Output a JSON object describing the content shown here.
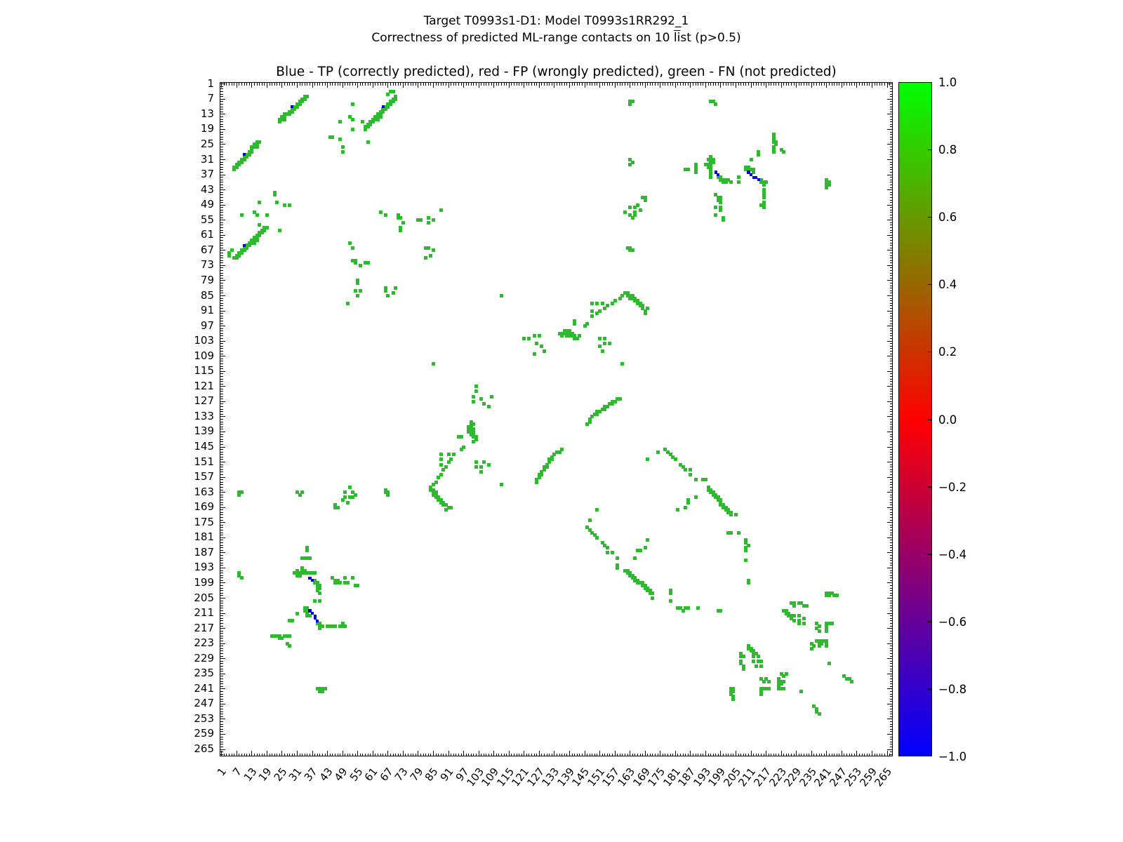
{
  "figure": {
    "title_line1": "Target T0993s1-D1: Model T0993s1RR292_1",
    "title_line2_prefix": "Correctness of predicted ML-range contacts on 10 ",
    "title_line2_overlined": "li",
    "title_line2_suffix": "st (p>0.5)",
    "axes_title": "Blue - TP (correctly predicted), red - FP (wrongly predicted), green - FN (not predicted)"
  },
  "axis": {
    "tick_labels": [
      "1",
      "7",
      "13",
      "19",
      "25",
      "31",
      "37",
      "43",
      "49",
      "55",
      "61",
      "67",
      "73",
      "79",
      "85",
      "91",
      "97",
      "103",
      "109",
      "115",
      "121",
      "127",
      "133",
      "139",
      "145",
      "151",
      "157",
      "163",
      "169",
      "175",
      "181",
      "187",
      "193",
      "199",
      "205",
      "211",
      "217",
      "223",
      "229",
      "235",
      "241",
      "247",
      "253",
      "259",
      "265"
    ],
    "min_cell": 1,
    "max_cell": 267
  },
  "colorbar": {
    "tick_labels": [
      "1.0",
      "0.8",
      "0.6",
      "0.4",
      "0.2",
      "0.0",
      "−0.2",
      "−0.4",
      "−0.6",
      "−0.8",
      "−1.0"
    ],
    "top_color": "#00ff00",
    "mid_color": "#ff0000",
    "bottom_color": "#0000ff"
  },
  "colors": {
    "fn_green": "#2eba2e",
    "tp_blue": "#0000dd",
    "fp_red": "#ff0000"
  },
  "chart_data": {
    "type": "heatmap",
    "symmetric": true,
    "n_cells": 267,
    "value_range": [
      -1,
      1
    ],
    "legend": {
      "TP": "blue",
      "FP": "red",
      "FN": "green"
    },
    "fp_red_points": [],
    "tp_blue_points": [
      [
        29,
        10
      ],
      [
        65,
        10
      ],
      [
        197,
        36
      ],
      [
        198,
        37
      ],
      [
        210,
        36
      ],
      [
        211,
        37
      ],
      [
        212,
        38
      ],
      [
        213,
        38
      ],
      [
        214,
        39
      ]
    ],
    "fn_green_points": [
      [
        24,
        15
      ],
      [
        24,
        16
      ],
      [
        25,
        14
      ],
      [
        25,
        15
      ],
      [
        26,
        13
      ],
      [
        26,
        14
      ],
      [
        26,
        15
      ],
      [
        27,
        13
      ],
      [
        28,
        12
      ],
      [
        28,
        13
      ],
      [
        29,
        11
      ],
      [
        29,
        12
      ],
      [
        30,
        10
      ],
      [
        30,
        11
      ],
      [
        31,
        9
      ],
      [
        31,
        10
      ],
      [
        32,
        8
      ],
      [
        32,
        9
      ],
      [
        33,
        7
      ],
      [
        33,
        8
      ],
      [
        34,
        6
      ],
      [
        34,
        7
      ],
      [
        35,
        6
      ],
      [
        58,
        18
      ],
      [
        58,
        19
      ],
      [
        59,
        17
      ],
      [
        59,
        18
      ],
      [
        60,
        16
      ],
      [
        60,
        17
      ],
      [
        61,
        15
      ],
      [
        61,
        16
      ],
      [
        62,
        14
      ],
      [
        62,
        15
      ],
      [
        63,
        13
      ],
      [
        63,
        14
      ],
      [
        63,
        15
      ],
      [
        64,
        12
      ],
      [
        64,
        13
      ],
      [
        64,
        14
      ],
      [
        65,
        11
      ],
      [
        65,
        12
      ],
      [
        66,
        10
      ],
      [
        66,
        11
      ],
      [
        67,
        9
      ],
      [
        67,
        10
      ],
      [
        68,
        8
      ],
      [
        68,
        9
      ],
      [
        69,
        7
      ],
      [
        69,
        8
      ],
      [
        70,
        6
      ],
      [
        70,
        7
      ],
      [
        69,
        4
      ],
      [
        68,
        4
      ],
      [
        67,
        5
      ],
      [
        53,
        9
      ],
      [
        52,
        14
      ],
      [
        53,
        15
      ],
      [
        48,
        16
      ],
      [
        57,
        16
      ],
      [
        53,
        19
      ],
      [
        44,
        22
      ],
      [
        45,
        22
      ],
      [
        48,
        23
      ],
      [
        49,
        26
      ],
      [
        49,
        28
      ],
      [
        59,
        24
      ],
      [
        64,
        52
      ],
      [
        66,
        53
      ],
      [
        71,
        53
      ],
      [
        71,
        54
      ],
      [
        72,
        54
      ],
      [
        73,
        56
      ],
      [
        72,
        58
      ],
      [
        72,
        59
      ],
      [
        79,
        55
      ],
      [
        80,
        55
      ],
      [
        83,
        54
      ],
      [
        83,
        56
      ],
      [
        85,
        55
      ],
      [
        88,
        51
      ],
      [
        82,
        66
      ],
      [
        83,
        66
      ],
      [
        85,
        67
      ],
      [
        84,
        69
      ],
      [
        82,
        70
      ],
      [
        112,
        85
      ],
      [
        160,
        112
      ],
      [
        121,
        102
      ],
      [
        123,
        102
      ],
      [
        125,
        101
      ],
      [
        127,
        101
      ],
      [
        126,
        104
      ],
      [
        128,
        105
      ],
      [
        129,
        107
      ],
      [
        125,
        108
      ],
      [
        141,
        95
      ],
      [
        141,
        96
      ],
      [
        145,
        97
      ],
      [
        146,
        96
      ],
      [
        135,
        100
      ],
      [
        136,
        100
      ],
      [
        136,
        101
      ],
      [
        137,
        99
      ],
      [
        137,
        100
      ],
      [
        138,
        99
      ],
      [
        138,
        100
      ],
      [
        138,
        101
      ],
      [
        139,
        99
      ],
      [
        139,
        100
      ],
      [
        139,
        101
      ],
      [
        140,
        100
      ],
      [
        140,
        101
      ],
      [
        141,
        101
      ],
      [
        141,
        102
      ],
      [
        142,
        102
      ],
      [
        143,
        101
      ],
      [
        148,
        88
      ],
      [
        150,
        88
      ],
      [
        152,
        88
      ],
      [
        148,
        91
      ],
      [
        151,
        91
      ],
      [
        148,
        93
      ],
      [
        150,
        92
      ],
      [
        153,
        90
      ],
      [
        154,
        89
      ],
      [
        156,
        88
      ],
      [
        157,
        87
      ],
      [
        159,
        86
      ],
      [
        160,
        85
      ],
      [
        161,
        84
      ],
      [
        162,
        84
      ],
      [
        162,
        85
      ],
      [
        163,
        85
      ],
      [
        163,
        86
      ],
      [
        164,
        85
      ],
      [
        164,
        86
      ],
      [
        165,
        86
      ],
      [
        165,
        87
      ],
      [
        166,
        87
      ],
      [
        166,
        88
      ],
      [
        167,
        88
      ],
      [
        167,
        89
      ],
      [
        168,
        89
      ],
      [
        168,
        90
      ],
      [
        169,
        91
      ],
      [
        169,
        92
      ],
      [
        170,
        90
      ],
      [
        151,
        102
      ],
      [
        153,
        102
      ],
      [
        153,
        104
      ],
      [
        155,
        104
      ],
      [
        151,
        105
      ],
      [
        152,
        107
      ],
      [
        159,
        126
      ],
      [
        158,
        126
      ],
      [
        157,
        127
      ],
      [
        156,
        127
      ],
      [
        156,
        128
      ],
      [
        155,
        128
      ],
      [
        154,
        129
      ],
      [
        153,
        129
      ],
      [
        153,
        130
      ],
      [
        152,
        130
      ],
      [
        151,
        131
      ],
      [
        150,
        131
      ],
      [
        150,
        132
      ],
      [
        149,
        132
      ],
      [
        148,
        133
      ],
      [
        147,
        134
      ],
      [
        147,
        135
      ],
      [
        146,
        136
      ],
      [
        170,
        150
      ],
      [
        174,
        147
      ],
      [
        177,
        146
      ],
      [
        178,
        147
      ],
      [
        179,
        148
      ],
      [
        180,
        149
      ],
      [
        181,
        150
      ],
      [
        183,
        152
      ],
      [
        184,
        153
      ],
      [
        185,
        154
      ],
      [
        187,
        154
      ],
      [
        187,
        156
      ],
      [
        185,
        169
      ],
      [
        186,
        166
      ],
      [
        189,
        158
      ],
      [
        192,
        158
      ],
      [
        193,
        158
      ],
      [
        194,
        161
      ],
      [
        194,
        162
      ],
      [
        195,
        162
      ],
      [
        195,
        163
      ],
      [
        196,
        163
      ],
      [
        196,
        164
      ],
      [
        197,
        164
      ],
      [
        197,
        165
      ],
      [
        198,
        165
      ],
      [
        198,
        166
      ],
      [
        199,
        166
      ],
      [
        199,
        167
      ],
      [
        199,
        168
      ],
      [
        200,
        168
      ],
      [
        200,
        169
      ],
      [
        201,
        169
      ],
      [
        201,
        170
      ],
      [
        202,
        170
      ],
      [
        202,
        171
      ],
      [
        203,
        171
      ],
      [
        203,
        172
      ],
      [
        205,
        172
      ],
      [
        189,
        165
      ],
      [
        186,
        167
      ],
      [
        182,
        170
      ],
      [
        202,
        179
      ],
      [
        203,
        179
      ],
      [
        206,
        179
      ],
      [
        209,
        182
      ],
      [
        209,
        183
      ],
      [
        210,
        184
      ],
      [
        209,
        185
      ],
      [
        209,
        186
      ],
      [
        209,
        190
      ],
      [
        210,
        198
      ],
      [
        210,
        199
      ],
      [
        185,
        35
      ],
      [
        186,
        35
      ],
      [
        189,
        33
      ],
      [
        189,
        34
      ],
      [
        189,
        35
      ],
      [
        189,
        36
      ],
      [
        193,
        33
      ],
      [
        194,
        31
      ],
      [
        194,
        33
      ],
      [
        194,
        34
      ],
      [
        195,
        30
      ],
      [
        195,
        31
      ],
      [
        195,
        32
      ],
      [
        195,
        33
      ],
      [
        195,
        34
      ],
      [
        195,
        35
      ],
      [
        195,
        36
      ],
      [
        195,
        37
      ],
      [
        195,
        38
      ],
      [
        196,
        31
      ],
      [
        196,
        32
      ],
      [
        198,
        38
      ],
      [
        199,
        38
      ],
      [
        199,
        39
      ],
      [
        200,
        39
      ],
      [
        200,
        40
      ],
      [
        201,
        39
      ],
      [
        201,
        40
      ],
      [
        202,
        39
      ],
      [
        203,
        40
      ],
      [
        206,
        38
      ],
      [
        206,
        40
      ],
      [
        209,
        34
      ],
      [
        209,
        35
      ],
      [
        210,
        34
      ],
      [
        210,
        35
      ],
      [
        211,
        31
      ],
      [
        211,
        35
      ],
      [
        212,
        35
      ],
      [
        212,
        36
      ],
      [
        214,
        28
      ],
      [
        215,
        39
      ],
      [
        215,
        40
      ],
      [
        216,
        40
      ],
      [
        216,
        41
      ],
      [
        217,
        40
      ],
      [
        216,
        43
      ],
      [
        216,
        44
      ],
      [
        216,
        45
      ],
      [
        216,
        46
      ],
      [
        216,
        48
      ],
      [
        216,
        49
      ],
      [
        216,
        50
      ],
      [
        215,
        49
      ],
      [
        220,
        21
      ],
      [
        220,
        22
      ],
      [
        220,
        23
      ],
      [
        220,
        24
      ],
      [
        221,
        24
      ],
      [
        221,
        25
      ],
      [
        220,
        26
      ],
      [
        220,
        27
      ],
      [
        220,
        28
      ],
      [
        223,
        27
      ],
      [
        224,
        28
      ],
      [
        214,
        29
      ],
      [
        197,
        45
      ],
      [
        198,
        46
      ],
      [
        198,
        47
      ],
      [
        199,
        46
      ],
      [
        199,
        47
      ],
      [
        199,
        48
      ],
      [
        199,
        50
      ],
      [
        199,
        51
      ],
      [
        197,
        50
      ],
      [
        197,
        53
      ],
      [
        200,
        54
      ],
      [
        200,
        55
      ],
      [
        241,
        39
      ],
      [
        241,
        40
      ],
      [
        241,
        41
      ],
      [
        241,
        42
      ],
      [
        242,
        40
      ],
      [
        242,
        41
      ],
      [
        163,
        8
      ],
      [
        164,
        8
      ],
      [
        163,
        9
      ],
      [
        195,
        8
      ],
      [
        196,
        8
      ],
      [
        197,
        9
      ],
      [
        163,
        31
      ],
      [
        164,
        32
      ],
      [
        163,
        33
      ],
      [
        168,
        46
      ],
      [
        169,
        46
      ],
      [
        169,
        47
      ],
      [
        166,
        49
      ],
      [
        163,
        50
      ],
      [
        165,
        50
      ],
      [
        167,
        51
      ],
      [
        161,
        52
      ],
      [
        165,
        52
      ],
      [
        163,
        53
      ],
      [
        165,
        53
      ],
      [
        164,
        54
      ],
      [
        162,
        66
      ],
      [
        163,
        66
      ],
      [
        163,
        67
      ],
      [
        164,
        67
      ],
      [
        241,
        203
      ],
      [
        242,
        203
      ],
      [
        243,
        203
      ],
      [
        241,
        204
      ],
      [
        242,
        204
      ],
      [
        244,
        204
      ],
      [
        245,
        204
      ],
      [
        227,
        207
      ],
      [
        228,
        207
      ],
      [
        228,
        208
      ],
      [
        230,
        207
      ],
      [
        231,
        207
      ],
      [
        232,
        208
      ],
      [
        233,
        208
      ],
      [
        224,
        210
      ],
      [
        225,
        210
      ],
      [
        225,
        211
      ],
      [
        226,
        211
      ],
      [
        226,
        212
      ],
      [
        227,
        212
      ],
      [
        228,
        212
      ],
      [
        227,
        213
      ],
      [
        228,
        214
      ],
      [
        230,
        212
      ],
      [
        230,
        214
      ],
      [
        230,
        215
      ],
      [
        232,
        213
      ],
      [
        232,
        215
      ],
      [
        235,
        223
      ],
      [
        235,
        225
      ],
      [
        236,
        224
      ],
      [
        237,
        215
      ],
      [
        237,
        217
      ],
      [
        237,
        222
      ],
      [
        238,
        216
      ],
      [
        238,
        218
      ],
      [
        238,
        222
      ],
      [
        238,
        223
      ],
      [
        238,
        224
      ],
      [
        239,
        222
      ],
      [
        239,
        223
      ],
      [
        240,
        222
      ],
      [
        241,
        215
      ],
      [
        241,
        216
      ],
      [
        241,
        217
      ],
      [
        241,
        218
      ],
      [
        241,
        222
      ],
      [
        241,
        223
      ],
      [
        241,
        224
      ],
      [
        242,
        215
      ],
      [
        243,
        215
      ],
      [
        242,
        231
      ],
      [
        248,
        236
      ],
      [
        249,
        237
      ],
      [
        250,
        237
      ],
      [
        251,
        238
      ]
    ]
  }
}
